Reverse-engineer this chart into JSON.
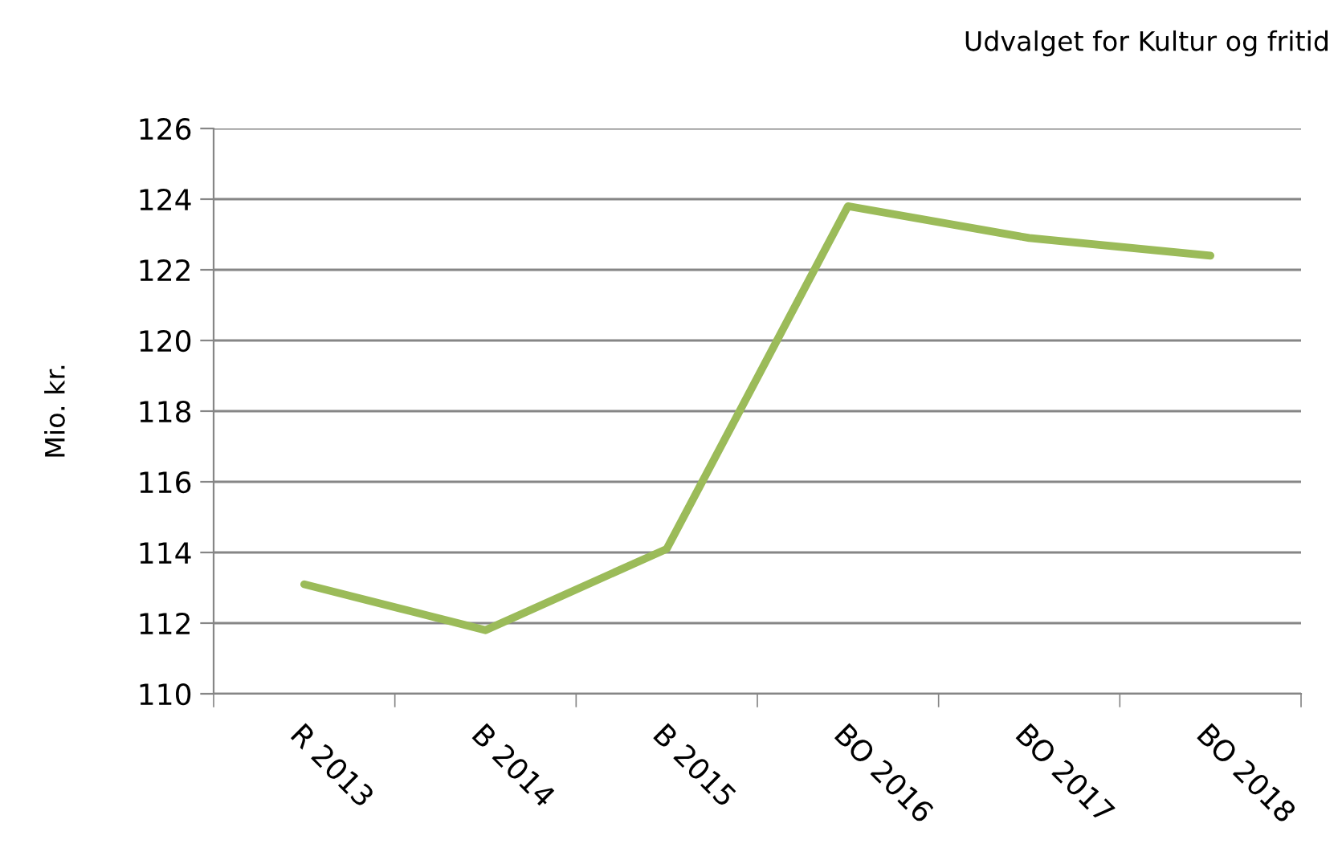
{
  "chart_data": {
    "type": "line",
    "title": "Udvalget for Kultur og fritid",
    "ylabel": "Mio. kr.",
    "categories": [
      "R 2013",
      "B 2014",
      "B 2015",
      "BO 2016",
      "BO 2017",
      "BO 2018"
    ],
    "series": [
      {
        "color": "#9bbb59",
        "values": [
          113.1,
          111.8,
          114.1,
          123.8,
          122.9,
          122.4
        ]
      }
    ],
    "ylim": [
      110,
      126
    ],
    "yticks": [
      110,
      112,
      114,
      116,
      118,
      120,
      122,
      124,
      126
    ],
    "grid": "y",
    "marker": "none",
    "line_style": "solid"
  }
}
